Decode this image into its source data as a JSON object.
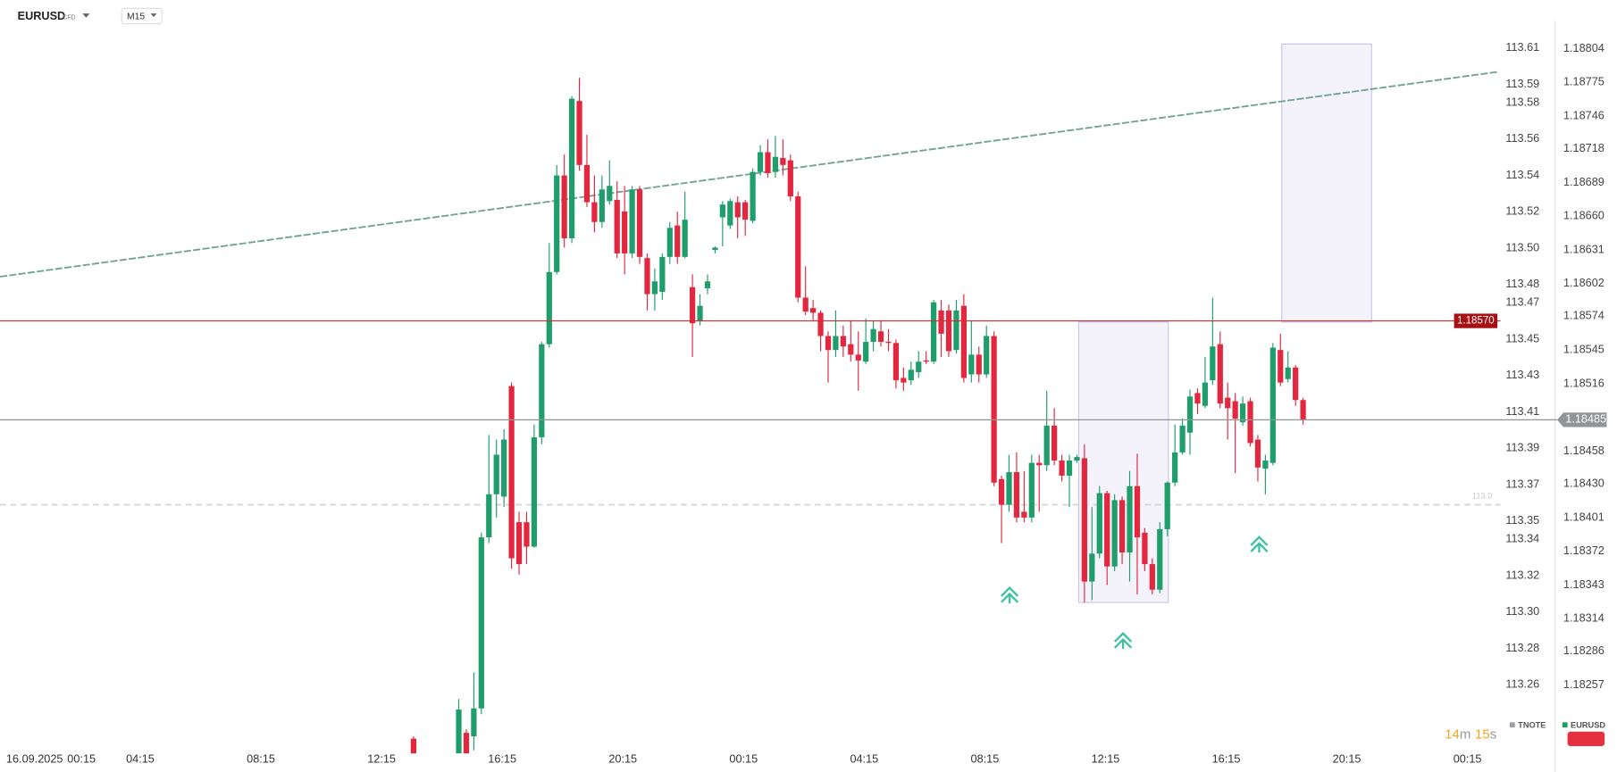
{
  "toolbar": {
    "symbol": "EURUSD",
    "badge": "CFD",
    "timeframe": "M15"
  },
  "countdown_parts": [
    "14",
    "m",
    "15",
    "s"
  ],
  "chart_data": {
    "type": "candlestick",
    "up_color": "#1f9e6c",
    "down_color": "#e3273f",
    "x_date": "16.09.2025",
    "x_labels": [
      "00:15",
      "04:15",
      "08:15",
      "12:15",
      "16:15",
      "20:15",
      "00:15",
      "04:15",
      "08:15",
      "12:15",
      "16:15",
      "20:15",
      "00:15"
    ],
    "open": [
      1.18211,
      null,
      null,
      null,
      null,
      null,
      1.18188,
      1.18216,
      1.18213,
      1.18237,
      1.18384,
      1.18421,
      1.18419,
      1.18514,
      1.18397,
      1.18397,
      1.18376,
      1.1847,
      1.1855,
      1.18612,
      1.18695,
      1.18641,
      1.18759,
      1.18704,
      1.18672,
      1.18655,
      1.18673,
      1.18674,
      1.18664,
      1.18628,
      1.18683,
      1.18624,
      1.18593,
      1.18595,
      1.18625,
      1.18652,
      1.18625,
      1.18599,
      1.1857,
      1.18598,
      1.18631,
      1.18659,
      1.18652,
      1.18672,
      1.18672,
      1.18656,
      1.18698,
      1.18715,
      1.18698,
      1.1871,
      1.18708,
      1.18677,
      1.1859,
      1.18581,
      1.18577,
      1.18557,
      1.18545,
      1.18557,
      1.1855,
      1.18541,
      1.18535,
      1.18552,
      1.18561,
      1.18552,
      1.18551,
      1.18521,
      1.18519,
      1.18526,
      1.18536,
      1.18535,
      1.18579,
      1.18579,
      1.18545,
      1.18583,
      1.18524,
      1.18541,
      1.18524,
      1.18557,
      1.18434,
      1.18412,
      1.1844,
      1.18406,
      1.18401,
      1.18448,
      1.18446,
      1.1848,
      1.1845,
      1.18437,
      1.1845,
      1.18452,
      1.18346,
      1.1837,
      1.18422,
      1.18359,
      1.18416,
      1.18371,
      1.18428,
      1.18388,
      1.18361,
      1.18339,
      1.18391,
      1.18431,
      1.18457,
      1.18474,
      1.18508,
      1.18497,
      1.18519,
      1.1855,
      1.18504,
      1.18501,
      1.18483,
      1.18501,
      1.18468,
      1.18443,
      1.18448,
      1.18545,
      1.1852,
      1.1853,
      1.18502
    ],
    "high": [
      1.18213,
      null,
      null,
      null,
      null,
      null,
      1.18245,
      1.18219,
      1.18268,
      1.18388,
      1.18472,
      1.18468,
      1.18477,
      1.18517,
      1.18406,
      1.18406,
      1.18481,
      1.18552,
      1.18637,
      1.18704,
      1.18713,
      1.18763,
      1.18779,
      1.1873,
      1.18695,
      1.18695,
      1.18708,
      1.1869,
      1.18686,
      1.18686,
      1.18686,
      1.18628,
      1.18615,
      1.18628,
      1.18655,
      1.18664,
      1.18681,
      1.1861,
      1.18593,
      1.1861,
      1.18634,
      1.18673,
      1.18675,
      1.18677,
      1.18674,
      1.18701,
      1.18721,
      1.18726,
      1.18729,
      1.18726,
      1.18713,
      1.18681,
      1.18617,
      1.18588,
      1.18579,
      1.18561,
      1.18579,
      1.18566,
      1.1857,
      1.18561,
      1.18572,
      1.1857,
      1.1857,
      1.18563,
      1.18554,
      1.1853,
      1.18535,
      1.18544,
      1.18544,
      1.18588,
      1.18588,
      1.18584,
      1.18588,
      1.18593,
      1.1857,
      1.18548,
      1.18566,
      1.18561,
      1.18437,
      1.18455,
      1.18457,
      1.18441,
      1.18455,
      1.18455,
      1.1851,
      1.18495,
      1.18455,
      1.18455,
      1.18455,
      1.18464,
      1.1841,
      1.18428,
      1.18424,
      1.18421,
      1.18419,
      1.18441,
      1.18456,
      1.18392,
      1.18366,
      1.18397,
      1.18432,
      1.18481,
      1.18486,
      1.18511,
      1.18512,
      1.18539,
      1.1859,
      1.18561,
      1.18517,
      1.18508,
      1.18505,
      1.18504,
      1.18472,
      1.18455,
      1.18551,
      1.18559,
      1.18544,
      1.18532,
      1.18504
    ],
    "low": [
      1.18179,
      null,
      null,
      null,
      null,
      null,
      1.18183,
      1.18192,
      1.18201,
      1.18232,
      1.18379,
      1.18401,
      1.1841,
      1.18357,
      1.18352,
      1.18361,
      1.18375,
      1.18464,
      1.18547,
      1.1861,
      1.18633,
      1.18637,
      1.18699,
      1.18668,
      1.18646,
      1.1865,
      1.1867,
      1.18624,
      1.1861,
      1.18624,
      1.18619,
      1.18579,
      1.18579,
      1.18588,
      1.18619,
      1.18619,
      1.18624,
      1.18539,
      1.18566,
      1.18593,
      1.18628,
      1.18634,
      1.18649,
      1.18641,
      1.18643,
      1.18654,
      1.18695,
      1.18693,
      1.18693,
      1.18695,
      1.18673,
      1.18586,
      1.18575,
      1.1857,
      1.18544,
      1.18517,
      1.18539,
      1.18539,
      1.18535,
      1.1851,
      1.18533,
      1.18544,
      1.18548,
      1.18544,
      1.18512,
      1.1851,
      1.18515,
      1.18521,
      1.18533,
      1.18533,
      1.18539,
      1.18539,
      1.18542,
      1.18517,
      1.18517,
      1.18517,
      1.18521,
      1.18428,
      1.18379,
      1.18406,
      1.18397,
      1.18397,
      1.18397,
      1.18406,
      1.18441,
      1.18446,
      1.18432,
      1.1841,
      1.18448,
      1.18328,
      1.1833,
      1.18366,
      1.18343,
      1.18355,
      1.18361,
      1.18346,
      1.18335,
      1.18355,
      1.18335,
      1.18336,
      1.18385,
      1.18428,
      1.18455,
      1.18455,
      1.1849,
      1.18495,
      1.18515,
      1.18495,
      1.18468,
      1.18439,
      1.1848,
      1.18462,
      1.18432,
      1.18421,
      1.18446,
      1.18514,
      1.18517,
      1.18497,
      1.18481
    ],
    "close": [
      1.18188,
      null,
      null,
      null,
      null,
      null,
      1.18236,
      1.18197,
      1.18237,
      1.18384,
      1.18421,
      1.18455,
      1.18468,
      1.18366,
      1.18361,
      1.18376,
      1.1847,
      1.1855,
      1.18612,
      1.18695,
      1.18641,
      1.18761,
      1.18704,
      1.18672,
      1.18655,
      1.18683,
      1.18686,
      1.18628,
      1.18628,
      1.18683,
      1.18625,
      1.18593,
      1.18604,
      1.18625,
      1.1865,
      1.18625,
      1.18657,
      1.18568,
      1.18583,
      1.18604,
      1.18633,
      1.1867,
      1.18673,
      1.18659,
      1.18657,
      1.18698,
      1.18715,
      1.18697,
      1.18711,
      1.18704,
      1.18677,
      1.1859,
      1.18578,
      1.18577,
      1.18557,
      1.18545,
      1.18557,
      1.18548,
      1.18541,
      1.18536,
      1.18552,
      1.18563,
      1.18552,
      1.18551,
      1.18519,
      1.18517,
      1.18528,
      1.18535,
      1.18535,
      1.18586,
      1.18559,
      1.18544,
      1.18579,
      1.18521,
      1.18541,
      1.18524,
      1.18557,
      1.18431,
      1.18412,
      1.1844,
      1.18401,
      1.18401,
      1.18448,
      1.18446,
      1.1848,
      1.1845,
      1.18437,
      1.1845,
      1.18453,
      1.18346,
      1.1837,
      1.18422,
      1.18359,
      1.18416,
      1.18371,
      1.18428,
      1.18384,
      1.18361,
      1.18339,
      1.18391,
      1.18431,
      1.18457,
      1.1848,
      1.18505,
      1.18499,
      1.18517,
      1.18548,
      1.18499,
      1.18495,
      1.18486,
      1.18499,
      1.18465,
      1.18444,
      1.1845,
      1.18547,
      1.18517,
      1.1853,
      1.18502,
      1.18485
    ],
    "ylim": [
      1.18201,
      1.18828
    ],
    "yticks": [
      1.18804,
      1.18775,
      1.18746,
      1.18718,
      1.18689,
      {
        "value": 1.1866,
        "label": "1.18660"
      },
      1.18631,
      1.18602,
      1.18574,
      1.18545,
      1.18516,
      1.18458,
      {
        "value": 1.1843,
        "label": "1.18430"
      },
      1.18401,
      1.18372,
      1.18343,
      1.18314,
      1.18286,
      1.18257
    ],
    "y2lim": [
      113.224,
      113.625
    ],
    "y2ticks": [
      113.61,
      113.59,
      113.58,
      113.56,
      113.54,
      113.52,
      {
        "value": 113.5,
        "label": "113.50"
      },
      113.48,
      113.47,
      113.45,
      113.43,
      113.41,
      113.39,
      113.37,
      113.35,
      113.34,
      113.32,
      {
        "value": 113.3,
        "label": "113.30"
      },
      113.28,
      113.26
    ],
    "grid": false,
    "current_price": 1.18485,
    "level": {
      "value": 1.1857,
      "label": "1.18570",
      "color": "#d42b2b"
    },
    "dashed_level": {
      "value": 1.18412,
      "label": "113.0"
    },
    "trendline": {
      "start": 1.18608,
      "end": 1.18784,
      "color": "#6ea395"
    },
    "zones": [
      {
        "top": 1.18569,
        "bottom": 1.18328
      },
      {
        "top": 1.18808,
        "bottom": 1.18569
      }
    ],
    "series": [
      {
        "name": "TNOTE",
        "color": "#9aa0a6"
      },
      {
        "name": "EURUSD",
        "color": "#1f9e6c"
      }
    ]
  }
}
